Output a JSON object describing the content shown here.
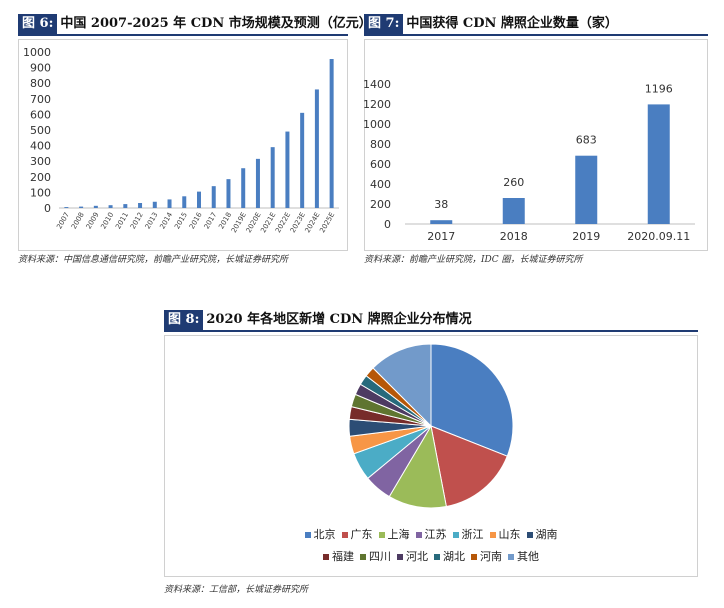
{
  "fig6": {
    "tag": "图 6:",
    "title": "中国 2007-2025 年 CDN 市场规模及预测（亿元）",
    "source": "资料来源：中国信息通信研究院，前瞻产业研究院，长城证券研究所",
    "chart_data": {
      "type": "bar",
      "categories": [
        "2007",
        "2008",
        "2009",
        "2010",
        "2011",
        "2012",
        "2013",
        "2014",
        "2015",
        "2016",
        "2017",
        "2018",
        "2019E",
        "2020E",
        "2021E",
        "2022E",
        "2023E",
        "2024E",
        "2025E"
      ],
      "values": [
        6,
        9,
        14,
        18,
        25,
        32,
        40,
        55,
        75,
        105,
        140,
        185,
        255,
        315,
        390,
        490,
        610,
        760,
        955
      ],
      "ylim": [
        0,
        1000
      ],
      "yticks": [
        0,
        100,
        200,
        300,
        400,
        500,
        600,
        700,
        800,
        900,
        1000
      ],
      "color": "#4a7ec1"
    }
  },
  "fig7": {
    "tag": "图 7:",
    "title": "中国获得 CDN 牌照企业数量（家）",
    "source": "资料来源：前瞻产业研究院，IDC 圈，长城证券研究所",
    "chart_data": {
      "type": "bar",
      "categories": [
        "2017",
        "2018",
        "2019",
        "2020.09.11"
      ],
      "values": [
        38,
        260,
        683,
        1196
      ],
      "ylim": [
        0,
        1400
      ],
      "yticks": [
        0,
        200,
        400,
        600,
        800,
        1000,
        1200,
        1400
      ],
      "color": "#4a7ec1"
    }
  },
  "fig8": {
    "tag": "图 8:",
    "title": "2020 年各地区新增 CDN 牌照企业分布情况",
    "source": "资料来源：工信部，长城证券研究所",
    "chart_data": {
      "type": "pie",
      "categories": [
        "北京",
        "广东",
        "上海",
        "江苏",
        "浙江",
        "山东",
        "湖南",
        "福建",
        "四川",
        "河北",
        "湖北",
        "河南",
        "其他"
      ],
      "values": [
        31,
        16,
        11.5,
        5.5,
        5.5,
        3.5,
        3.3,
        2.5,
        2.5,
        2.2,
        2.0,
        2.0,
        12.5
      ],
      "colors": [
        "#4a7ec1",
        "#c0504d",
        "#9bbb59",
        "#8064a2",
        "#4bacc6",
        "#f79646",
        "#2c4d75",
        "#772c2a",
        "#5f7530",
        "#4d3b62",
        "#276a7c",
        "#b65708",
        "#729aca"
      ],
      "legend_position": "bottom"
    }
  }
}
